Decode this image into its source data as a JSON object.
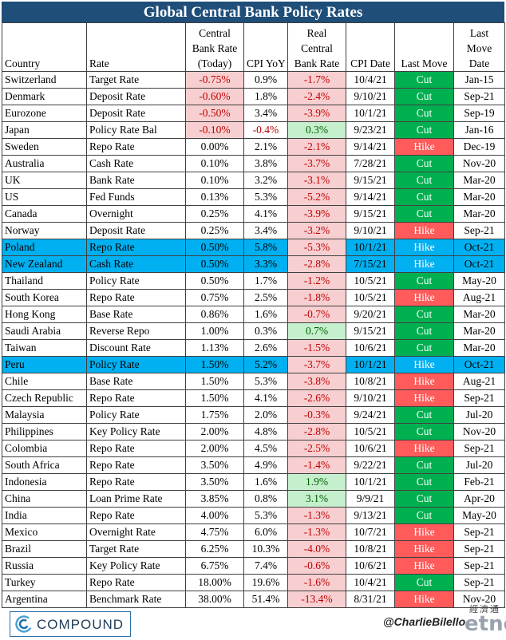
{
  "title": "Global Central Bank Policy Rates",
  "columns": {
    "country": "Country",
    "rate": "Rate",
    "cb_rate": [
      "Central",
      "Bank Rate",
      "(Today)"
    ],
    "cpi": "CPI YoY",
    "real": [
      "Real",
      "Central",
      "Bank Rate"
    ],
    "cpi_date": "CPI Date",
    "last_move": "Last Move",
    "last_move_date": [
      "Last",
      "Move",
      "Date"
    ]
  },
  "rows": [
    {
      "country": "Switzerland",
      "rate": "Target Rate",
      "cb": "-0.75%",
      "cpi": "0.9%",
      "real": "-1.7%",
      "date": "10/4/21",
      "move": "Cut",
      "move_date": "Jan-15"
    },
    {
      "country": "Denmark",
      "rate": "Deposit Rate",
      "cb": "-0.60%",
      "cpi": "1.8%",
      "real": "-2.4%",
      "date": "9/10/21",
      "move": "Cut",
      "move_date": "Sep-21"
    },
    {
      "country": "Eurozone",
      "rate": "Deposit Rate",
      "cb": "-0.50%",
      "cpi": "3.4%",
      "real": "-3.9%",
      "date": "10/1/21",
      "move": "Cut",
      "move_date": "Sep-19"
    },
    {
      "country": "Japan",
      "rate": "Policy Rate Bal",
      "cb": "-0.10%",
      "cpi": "-0.4%",
      "real": "0.3%",
      "date": "9/23/21",
      "move": "Cut",
      "move_date": "Jan-16"
    },
    {
      "country": "Sweden",
      "rate": "Repo Rate",
      "cb": "0.00%",
      "cpi": "2.1%",
      "real": "-2.1%",
      "date": "9/14/21",
      "move": "Hike",
      "move_date": "Dec-19"
    },
    {
      "country": "Australia",
      "rate": "Cash Rate",
      "cb": "0.10%",
      "cpi": "3.8%",
      "real": "-3.7%",
      "date": "7/28/21",
      "move": "Cut",
      "move_date": "Nov-20"
    },
    {
      "country": "UK",
      "rate": "Bank Rate",
      "cb": "0.10%",
      "cpi": "3.2%",
      "real": "-3.1%",
      "date": "9/15/21",
      "move": "Cut",
      "move_date": "Mar-20"
    },
    {
      "country": "US",
      "rate": "Fed Funds",
      "cb": "0.13%",
      "cpi": "5.3%",
      "real": "-5.2%",
      "date": "9/14/21",
      "move": "Cut",
      "move_date": "Mar-20"
    },
    {
      "country": "Canada",
      "rate": "Overnight",
      "cb": "0.25%",
      "cpi": "4.1%",
      "real": "-3.9%",
      "date": "9/15/21",
      "move": "Cut",
      "move_date": "Mar-20"
    },
    {
      "country": "Norway",
      "rate": "Deposit Rate",
      "cb": "0.25%",
      "cpi": "3.4%",
      "real": "-3.2%",
      "date": "9/10/21",
      "move": "Hike",
      "move_date": "Sep-21"
    },
    {
      "country": "Poland",
      "rate": "Repo Rate",
      "cb": "0.50%",
      "cpi": "5.8%",
      "real": "-5.3%",
      "date": "10/1/21",
      "move": "Hike",
      "move_date": "Oct-21",
      "highlight": true
    },
    {
      "country": "New Zealand",
      "rate": "Cash Rate",
      "cb": "0.50%",
      "cpi": "3.3%",
      "real": "-2.8%",
      "date": "7/15/21",
      "move": "Hike",
      "move_date": "Oct-21",
      "highlight": true
    },
    {
      "country": "Thailand",
      "rate": "Policy Rate",
      "cb": "0.50%",
      "cpi": "1.7%",
      "real": "-1.2%",
      "date": "10/5/21",
      "move": "Cut",
      "move_date": "May-20"
    },
    {
      "country": "South Korea",
      "rate": "Repo Rate",
      "cb": "0.75%",
      "cpi": "2.5%",
      "real": "-1.8%",
      "date": "10/5/21",
      "move": "Hike",
      "move_date": "Aug-21"
    },
    {
      "country": "Hong Kong",
      "rate": "Base Rate",
      "cb": "0.86%",
      "cpi": "1.6%",
      "real": "-0.7%",
      "date": "9/20/21",
      "move": "Cut",
      "move_date": "Mar-20"
    },
    {
      "country": "Saudi Arabia",
      "rate": "Reverse Repo",
      "cb": "1.00%",
      "cpi": "0.3%",
      "real": "0.7%",
      "date": "9/15/21",
      "move": "Cut",
      "move_date": "Mar-20"
    },
    {
      "country": "Taiwan",
      "rate": "Discount Rate",
      "cb": "1.13%",
      "cpi": "2.6%",
      "real": "-1.5%",
      "date": "10/6/21",
      "move": "Cut",
      "move_date": "Mar-20"
    },
    {
      "country": "Peru",
      "rate": "Policy Rate",
      "cb": "1.50%",
      "cpi": "5.2%",
      "real": "-3.7%",
      "date": "10/1/21",
      "move": "Hike",
      "move_date": "Oct-21",
      "highlight": true
    },
    {
      "country": "Chile",
      "rate": "Base Rate",
      "cb": "1.50%",
      "cpi": "5.3%",
      "real": "-3.8%",
      "date": "10/8/21",
      "move": "Hike",
      "move_date": "Aug-21"
    },
    {
      "country": "Czech Republic",
      "rate": "Repo Rate",
      "cb": "1.50%",
      "cpi": "4.1%",
      "real": "-2.6%",
      "date": "9/10/21",
      "move": "Hike",
      "move_date": "Sep-21"
    },
    {
      "country": "Malaysia",
      "rate": "Policy Rate",
      "cb": "1.75%",
      "cpi": "2.0%",
      "real": "-0.3%",
      "date": "9/24/21",
      "move": "Cut",
      "move_date": "Jul-20"
    },
    {
      "country": "Philippines",
      "rate": "Key Policy Rate",
      "cb": "2.00%",
      "cpi": "4.8%",
      "real": "-2.8%",
      "date": "10/5/21",
      "move": "Cut",
      "move_date": "Nov-20"
    },
    {
      "country": "Colombia",
      "rate": "Repo Rate",
      "cb": "2.00%",
      "cpi": "4.5%",
      "real": "-2.5%",
      "date": "10/6/21",
      "move": "Hike",
      "move_date": "Sep-21"
    },
    {
      "country": "South Africa",
      "rate": "Repo Rate",
      "cb": "3.50%",
      "cpi": "4.9%",
      "real": "-1.4%",
      "date": "9/22/21",
      "move": "Cut",
      "move_date": "Jul-20"
    },
    {
      "country": "Indonesia",
      "rate": "Repo Rate",
      "cb": "3.50%",
      "cpi": "1.6%",
      "real": "1.9%",
      "date": "10/1/21",
      "move": "Cut",
      "move_date": "Feb-21"
    },
    {
      "country": "China",
      "rate": "Loan Prime Rate",
      "cb": "3.85%",
      "cpi": "0.8%",
      "real": "3.1%",
      "date": "9/9/21",
      "move": "Cut",
      "move_date": "Apr-20"
    },
    {
      "country": "India",
      "rate": "Repo Rate",
      "cb": "4.00%",
      "cpi": "5.3%",
      "real": "-1.3%",
      "date": "9/13/21",
      "move": "Cut",
      "move_date": "May-20"
    },
    {
      "country": "Mexico",
      "rate": "Overnight Rate",
      "cb": "4.75%",
      "cpi": "6.0%",
      "real": "-1.3%",
      "date": "10/7/21",
      "move": "Hike",
      "move_date": "Sep-21"
    },
    {
      "country": "Brazil",
      "rate": "Target Rate",
      "cb": "6.25%",
      "cpi": "10.3%",
      "real": "-4.0%",
      "date": "10/8/21",
      "move": "Hike",
      "move_date": "Sep-21"
    },
    {
      "country": "Russia",
      "rate": "Key Policy Rate",
      "cb": "6.75%",
      "cpi": "7.4%",
      "real": "-0.6%",
      "date": "10/6/21",
      "move": "Hike",
      "move_date": "Sep-21"
    },
    {
      "country": "Turkey",
      "rate": "Repo Rate",
      "cb": "18.00%",
      "cpi": "19.6%",
      "real": "-1.6%",
      "date": "10/4/21",
      "move": "Cut",
      "move_date": "Sep-21"
    },
    {
      "country": "Argentina",
      "rate": "Benchmark Rate",
      "cb": "38.00%",
      "cpi": "51.4%",
      "real": "-13.4%",
      "date": "8/31/21",
      "move": "Hike",
      "move_date": "Nov-20"
    }
  ],
  "colors": {
    "header_bg": "#1f4e79",
    "highlight_row": "#00b0f0",
    "negative_bg": "#f8cfd1",
    "negative_text": "#c00000",
    "positive_bg": "#c6efce",
    "positive_text": "#006100",
    "cut_bg": "#00b050",
    "hike_bg": "#ff5b5b"
  },
  "footer": {
    "logo_text": "COMPOUND",
    "logo_icon": "compound-logo-icon",
    "handle": "@CharlieBilello",
    "watermark_top": "經濟通",
    "watermark": "etnet"
  }
}
